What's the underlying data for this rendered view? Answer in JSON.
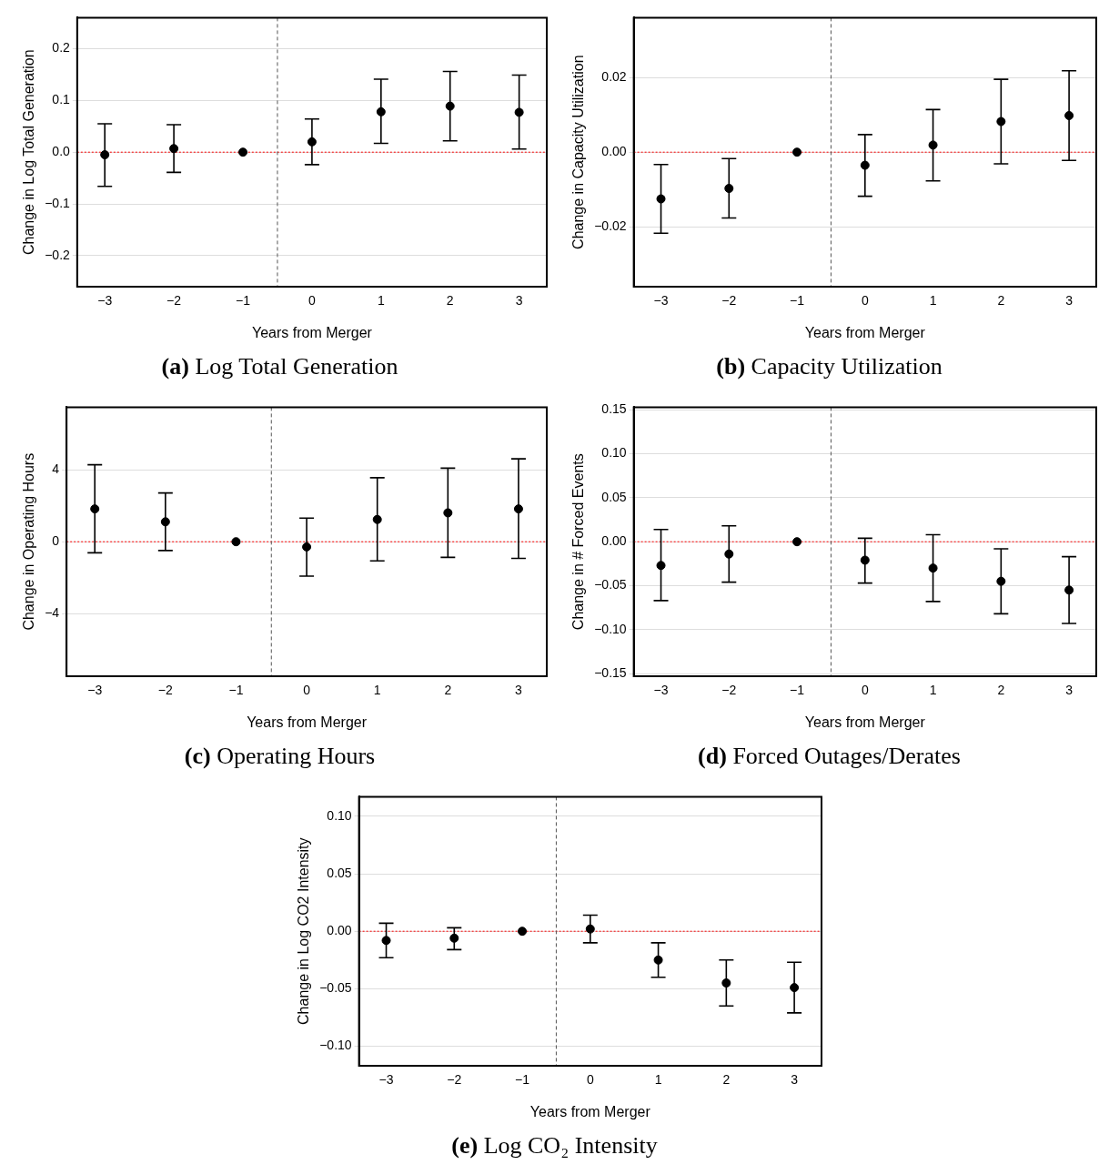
{
  "chart_data": [
    {
      "type": "scatter",
      "title": "(a) Log Total Generation",
      "xlabel": "Years from Merger",
      "ylabel": "Change in Log Total Generation",
      "x": [
        -3,
        -2,
        -1,
        0,
        1,
        2,
        3
      ],
      "xlim": [
        -3.4,
        3.4
      ],
      "xticks": [
        {
          "value": -3,
          "label": "−3"
        },
        {
          "value": -2,
          "label": "−2"
        },
        {
          "value": -1,
          "label": "−1"
        },
        0,
        1,
        2,
        3
      ],
      "ylim": [
        -0.26,
        0.26
      ],
      "yticks": [
        {
          "value": -0.2,
          "label": "−0.2"
        },
        {
          "value": -0.1,
          "label": "−0.1"
        },
        {
          "value": 0,
          "label": "0.0"
        },
        0.1,
        0.2
      ],
      "grid": "y",
      "marker": "circle",
      "legend": false,
      "series": [
        {
          "color": "#000000",
          "values": [
            -0.005,
            0.007,
            0,
            0.02,
            0.078,
            0.089,
            0.077
          ],
          "errors": [
            [
              -0.066,
              0.055
            ],
            [
              -0.039,
              0.053
            ],
            null,
            [
              -0.024,
              0.064
            ],
            [
              0.017,
              0.141
            ],
            [
              0.022,
              0.156
            ],
            [
              0.006,
              0.149
            ]
          ]
        }
      ],
      "ref_lines": [
        {
          "axis": "y",
          "value": 0,
          "color": "#ff0000",
          "line_style": "dotted"
        },
        {
          "axis": "x",
          "value": -0.5,
          "color": "#555555",
          "line_style": "dashed"
        }
      ]
    },
    {
      "type": "scatter",
      "title": "(b) Capacity Utilization",
      "xlabel": "Years from Merger",
      "ylabel": "Change in Capacity Utilization",
      "x": [
        -3,
        -2,
        -1,
        0,
        1,
        2,
        3
      ],
      "xlim": [
        -3.4,
        3.4
      ],
      "xticks": [
        {
          "value": -3,
          "label": "−3"
        },
        {
          "value": -2,
          "label": "−2"
        },
        {
          "value": -1,
          "label": "−1"
        },
        0,
        1,
        2,
        3
      ],
      "ylim": [
        -0.036,
        0.036
      ],
      "yticks": [
        {
          "value": -0.02,
          "label": "−0.02"
        },
        {
          "value": 0,
          "label": "0.00"
        },
        0.02
      ],
      "grid": "y",
      "marker": "circle",
      "legend": false,
      "series": [
        {
          "color": "#000000",
          "values": [
            -0.0125,
            -0.0097,
            0,
            -0.0035,
            0.0019,
            0.0082,
            0.0098
          ],
          "errors": [
            [
              -0.0217,
              -0.0033
            ],
            [
              -0.0176,
              -0.0017
            ],
            null,
            [
              -0.0118,
              0.0047
            ],
            [
              -0.0077,
              0.0114
            ],
            [
              -0.0031,
              0.0195
            ],
            [
              -0.0022,
              0.0218
            ]
          ]
        }
      ],
      "ref_lines": [
        {
          "axis": "y",
          "value": 0,
          "color": "#ff0000",
          "line_style": "dotted"
        },
        {
          "axis": "x",
          "value": -0.5,
          "color": "#555555",
          "line_style": "dashed"
        }
      ]
    },
    {
      "type": "scatter",
      "title": "(c) Operating Hours",
      "xlabel": "Years from Merger",
      "ylabel": "Change in Operating Hours",
      "x": [
        -3,
        -2,
        -1,
        0,
        1,
        2,
        3
      ],
      "xlim": [
        -3.4,
        3.4
      ],
      "xticks": [
        {
          "value": -3,
          "label": "−3"
        },
        {
          "value": -2,
          "label": "−2"
        },
        {
          "value": -1,
          "label": "−1"
        },
        0,
        1,
        2,
        3
      ],
      "ylim": [
        -7.5,
        7.5
      ],
      "yticks": [
        {
          "value": -4,
          "label": "−4"
        },
        0,
        4
      ],
      "grid": "y",
      "marker": "circle",
      "legend": false,
      "series": [
        {
          "color": "#000000",
          "values": [
            1.83,
            1.11,
            0,
            -0.29,
            1.24,
            1.61,
            1.83
          ],
          "errors": [
            [
              -0.62,
              4.29
            ],
            [
              -0.49,
              2.72
            ],
            null,
            [
              -1.92,
              1.32
            ],
            [
              -1.07,
              3.57
            ],
            [
              -0.87,
              4.1
            ],
            [
              -0.93,
              4.62
            ]
          ]
        }
      ],
      "ref_lines": [
        {
          "axis": "y",
          "value": 0,
          "color": "#ff0000",
          "line_style": "dotted"
        },
        {
          "axis": "x",
          "value": -0.5,
          "color": "#555555",
          "line_style": "dashed"
        }
      ]
    },
    {
      "type": "scatter",
      "title": "(d) Forced Outages/Derates",
      "xlabel": "Years from Merger",
      "ylabel": "Change in # Forced Events",
      "x": [
        -3,
        -2,
        -1,
        0,
        1,
        2,
        3
      ],
      "xlim": [
        -3.4,
        3.4
      ],
      "xticks": [
        {
          "value": -3,
          "label": "−3"
        },
        {
          "value": -2,
          "label": "−2"
        },
        {
          "value": -1,
          "label": "−1"
        },
        0,
        1,
        2,
        3
      ],
      "ylim": [
        -0.153,
        0.153
      ],
      "yticks": [
        {
          "value": -0.15,
          "label": "−0.15"
        },
        {
          "value": -0.1,
          "label": "−0.10"
        },
        {
          "value": -0.05,
          "label": "−0.05"
        },
        {
          "value": 0,
          "label": "0.00"
        },
        0.05,
        {
          "value": 0.1,
          "label": "0.10"
        },
        0.15
      ],
      "grid": "y",
      "marker": "circle",
      "legend": false,
      "series": [
        {
          "color": "#000000",
          "values": [
            -0.027,
            -0.014,
            0,
            -0.021,
            -0.03,
            -0.045,
            -0.055
          ],
          "errors": [
            [
              -0.067,
              0.014
            ],
            [
              -0.046,
              0.018
            ],
            null,
            [
              -0.047,
              0.004
            ],
            [
              -0.068,
              0.008
            ],
            [
              -0.082,
              -0.008
            ],
            [
              -0.093,
              -0.017
            ]
          ]
        }
      ],
      "ref_lines": [
        {
          "axis": "y",
          "value": 0,
          "color": "#ff0000",
          "line_style": "dotted"
        },
        {
          "axis": "x",
          "value": -0.5,
          "color": "#555555",
          "line_style": "dashed"
        }
      ]
    },
    {
      "type": "scatter",
      "title": "(e) Log CO₂ Intensity",
      "xlabel": "Years from Merger",
      "ylabel": "Change in Log CO2 Intensity",
      "x": [
        -3,
        -2,
        -1,
        0,
        1,
        2,
        3
      ],
      "xlim": [
        -3.4,
        3.4
      ],
      "xticks": [
        {
          "value": -3,
          "label": "−3"
        },
        {
          "value": -2,
          "label": "−2"
        },
        {
          "value": -1,
          "label": "−1"
        },
        0,
        1,
        2,
        3
      ],
      "ylim": [
        -0.117,
        0.117
      ],
      "yticks": [
        {
          "value": -0.1,
          "label": "−0.10"
        },
        {
          "value": -0.05,
          "label": "−0.05"
        },
        {
          "value": 0,
          "label": "0.00"
        },
        0.05,
        {
          "value": 0.1,
          "label": "0.10"
        }
      ],
      "grid": "y",
      "marker": "circle",
      "legend": false,
      "series": [
        {
          "color": "#000000",
          "values": [
            -0.008,
            -0.006,
            0,
            0.002,
            -0.025,
            -0.045,
            -0.049
          ],
          "errors": [
            [
              -0.023,
              0.007
            ],
            [
              -0.016,
              0.003
            ],
            null,
            [
              -0.01,
              0.014
            ],
            [
              -0.04,
              -0.01
            ],
            [
              -0.065,
              -0.025
            ],
            [
              -0.071,
              -0.027
            ]
          ]
        }
      ],
      "ref_lines": [
        {
          "axis": "y",
          "value": 0,
          "color": "#ff0000",
          "line_style": "dotted"
        },
        {
          "axis": "x",
          "value": -0.5,
          "color": "#555555",
          "line_style": "dashed"
        }
      ]
    }
  ]
}
